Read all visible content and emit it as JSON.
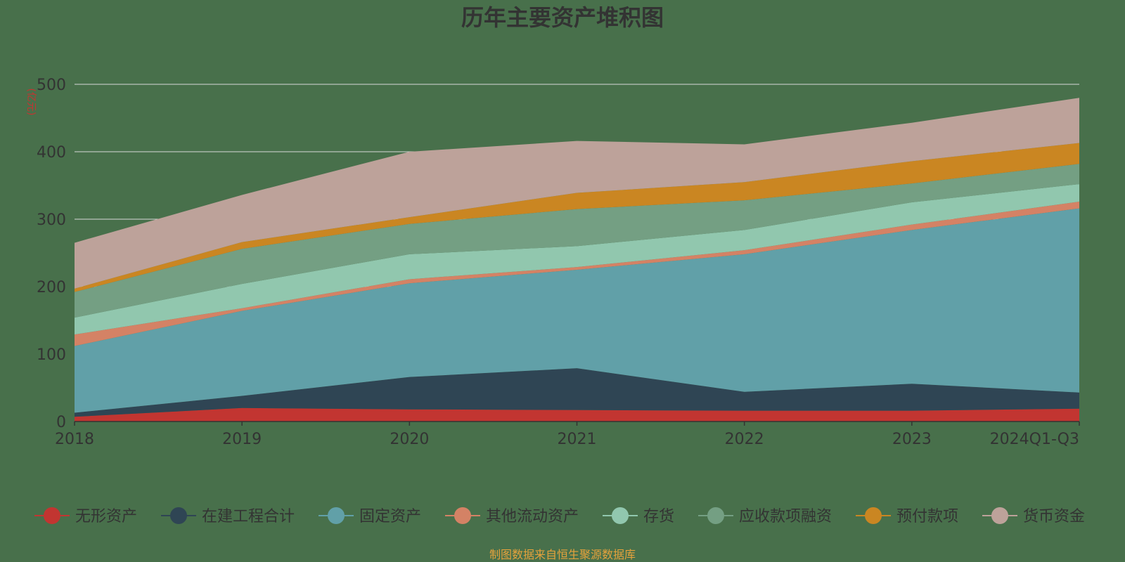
{
  "chart_data": {
    "type": "area",
    "stacked": true,
    "title": "历年主要资产堆积图",
    "unit_label": "(亿元)",
    "categories": [
      "2018",
      "2019",
      "2020",
      "2021",
      "2022",
      "2023",
      "2024Q1-Q3"
    ],
    "ylim": [
      0,
      500
    ],
    "y_ticks": [
      "0",
      "100",
      "200",
      "300",
      "400",
      "500"
    ],
    "grid": true,
    "legend_position": "bottom",
    "series": [
      {
        "name": "无形资产",
        "color": "#c23531",
        "values": [
          7,
          20,
          18,
          17,
          16,
          16,
          19
        ]
      },
      {
        "name": "在建工程合计",
        "color": "#2f4554",
        "values": [
          6,
          18,
          48,
          62,
          28,
          40,
          24
        ]
      },
      {
        "name": "固定资产",
        "color": "#61a0a8",
        "values": [
          99,
          126,
          139,
          146,
          204,
          228,
          273
        ]
      },
      {
        "name": "其他流动资产",
        "color": "#d48265",
        "values": [
          17,
          4,
          6,
          4,
          6,
          8,
          10
        ]
      },
      {
        "name": "存货",
        "color": "#91c7ae",
        "values": [
          25,
          36,
          37,
          31,
          30,
          33,
          26
        ]
      },
      {
        "name": "应收款项融资",
        "color": "#749f83",
        "values": [
          38,
          52,
          45,
          55,
          44,
          28,
          30
        ]
      },
      {
        "name": "预付款项",
        "color": "#ca8622",
        "values": [
          5,
          10,
          10,
          24,
          27,
          33,
          31
        ]
      },
      {
        "name": "货币资金",
        "color": "#bda29a",
        "values": [
          68,
          70,
          97,
          77,
          56,
          57,
          67
        ]
      }
    ],
    "source_note": "制图数据来自恒生聚源数据库"
  }
}
